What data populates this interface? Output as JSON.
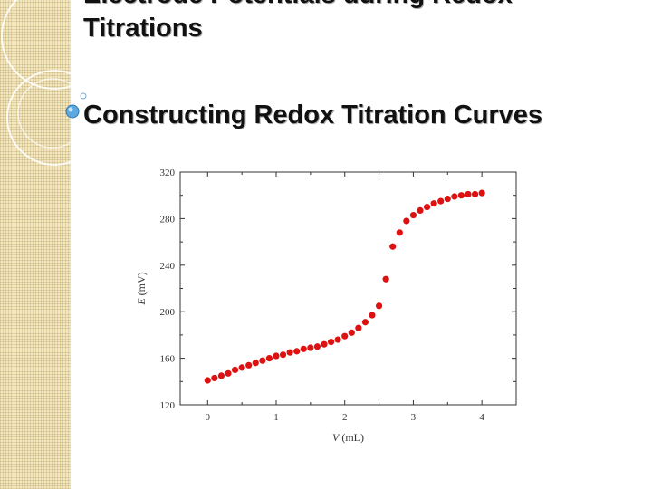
{
  "slide": {
    "title_line1": "Electrode Potentials during Redox",
    "title_line2": "Titrations",
    "subtitle": "Constructing Redox Titration Curves"
  },
  "colors": {
    "sidebar": "#f3e8c4",
    "marker": "#dd1111",
    "bullet": "#5aa9e0"
  },
  "chart_data": {
    "type": "scatter",
    "xlabel_var": "V",
    "xlabel_unit": "(mL)",
    "ylabel_var": "E",
    "ylabel_unit": "(mV)",
    "xlim": [
      -0.4,
      4.5
    ],
    "ylim": [
      120,
      320
    ],
    "xticks": [
      0,
      1,
      2,
      3,
      4
    ],
    "yticks": [
      120,
      160,
      200,
      240,
      280,
      320
    ],
    "grid": false,
    "x": [
      0,
      0.1,
      0.2,
      0.3,
      0.4,
      0.5,
      0.6,
      0.7,
      0.8,
      0.9,
      1.0,
      1.1,
      1.2,
      1.3,
      1.4,
      1.5,
      1.6,
      1.7,
      1.8,
      1.9,
      2.0,
      2.1,
      2.2,
      2.3,
      2.4,
      2.5,
      2.6,
      2.7,
      2.8,
      2.9,
      3.0,
      3.1,
      3.2,
      3.3,
      3.4,
      3.5,
      3.6,
      3.7,
      3.8,
      3.9,
      4.0
    ],
    "y": [
      141,
      143,
      145,
      147,
      150,
      152,
      154,
      156,
      158,
      160,
      162,
      163,
      165,
      166,
      168,
      169,
      170,
      172,
      174,
      176,
      179,
      182,
      186,
      191,
      197,
      205,
      228,
      256,
      268,
      278,
      283,
      287,
      290,
      293,
      295,
      297,
      299,
      300,
      301,
      301,
      302
    ]
  }
}
